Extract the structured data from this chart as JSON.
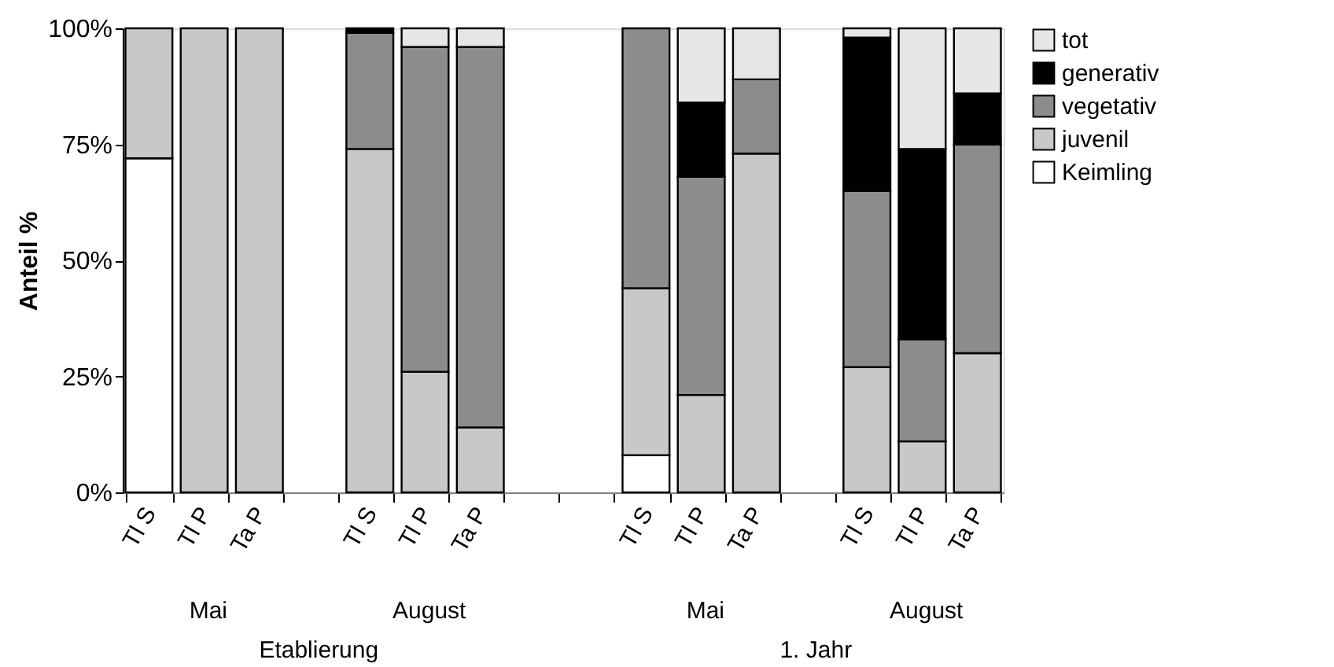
{
  "chart_data": {
    "type": "bar",
    "stacked": true,
    "ylabel": "Anteil %",
    "categories": [
      "Tl S",
      "Tl P",
      "Ta P",
      null,
      "Tl S",
      "Tl P",
      "Ta P",
      null,
      null,
      "Tl S",
      "Tl P",
      "Ta P",
      null,
      "Tl S",
      "Tl P",
      "Ta P"
    ],
    "series": [
      {
        "name": "Keimling",
        "color": "#ffffff",
        "values": [
          72,
          null,
          null,
          null,
          null,
          null,
          null,
          null,
          null,
          8,
          null,
          null,
          null,
          null,
          null,
          null
        ]
      },
      {
        "name": "juvenil",
        "color": "#c8c8c8",
        "values": [
          28,
          100,
          100,
          null,
          74,
          26,
          14,
          null,
          null,
          36,
          21,
          73,
          null,
          27,
          11,
          30
        ]
      },
      {
        "name": "vegetativ",
        "color": "#8c8c8c",
        "values": [
          null,
          null,
          null,
          null,
          25,
          70,
          82,
          null,
          null,
          56,
          47,
          16,
          null,
          38,
          22,
          45
        ]
      },
      {
        "name": "generativ",
        "color": "#000000",
        "values": [
          null,
          null,
          null,
          null,
          1,
          null,
          null,
          null,
          null,
          null,
          16,
          null,
          null,
          33,
          41,
          11
        ]
      },
      {
        "name": "tot",
        "color": "#e6e6e6",
        "values": [
          null,
          null,
          null,
          null,
          null,
          4,
          4,
          null,
          null,
          null,
          16,
          11,
          null,
          2,
          26,
          14
        ]
      }
    ],
    "ylim": [
      0,
      100
    ],
    "yticks": [
      {
        "value": 0,
        "label": "0%"
      },
      {
        "value": 25,
        "label": "25%"
      },
      {
        "value": 50,
        "label": "50%"
      },
      {
        "value": 75,
        "label": "75%"
      },
      {
        "value": 100,
        "label": "100%"
      }
    ],
    "grid": false,
    "legend": "right",
    "annotations": [
      "Mai",
      "August",
      "Mai",
      "August",
      "Etablierung",
      "1. Jahr"
    ]
  }
}
